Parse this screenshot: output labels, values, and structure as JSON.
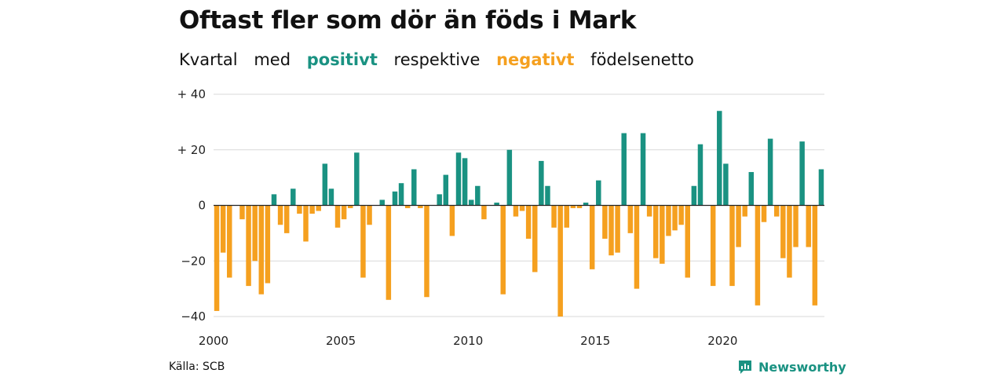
{
  "title": "Oftast fler som dör än föds i Mark",
  "subtitle": {
    "w1": "Kvartal",
    "w2": "med",
    "pos_word": "positivt",
    "w3": "respektive",
    "neg_word": "negativt",
    "w4": "födelsenetto"
  },
  "source": "Källa: SCB",
  "brand": {
    "name": "Newsworthy",
    "icon": "newsworthy-logo-icon"
  },
  "colors": {
    "positive": "#1a9282",
    "negative": "#f5a01f",
    "grid": "#d9d9d9",
    "zero_line": "#222222"
  },
  "chart_data": {
    "type": "bar",
    "title": "Oftast fler som dör än föds i Mark",
    "xlabel": "",
    "ylabel": "",
    "ylim": [
      -40,
      40
    ],
    "yticks": [
      {
        "value": 40,
        "label": "+ 40"
      },
      {
        "value": 20,
        "label": "+ 20"
      },
      {
        "value": 0,
        "label": "0"
      },
      {
        "value": -20,
        "label": "−20"
      },
      {
        "value": -40,
        "label": "−40"
      }
    ],
    "xticks": [
      {
        "year": 2000,
        "label": "2000"
      },
      {
        "year": 2005,
        "label": "2005"
      },
      {
        "year": 2010,
        "label": "2010"
      },
      {
        "year": 2015,
        "label": "2015"
      },
      {
        "year": 2020,
        "label": "2020"
      }
    ],
    "grid": true,
    "start": "2000 Q1",
    "x": [
      "2000 Q1",
      "2000 Q2",
      "2000 Q3",
      "2000 Q4",
      "2001 Q1",
      "2001 Q2",
      "2001 Q3",
      "2001 Q4",
      "2002 Q1",
      "2002 Q2",
      "2002 Q3",
      "2002 Q4",
      "2003 Q1",
      "2003 Q2",
      "2003 Q3",
      "2003 Q4",
      "2004 Q1",
      "2004 Q2",
      "2004 Q3",
      "2004 Q4",
      "2005 Q1",
      "2005 Q2",
      "2005 Q3",
      "2005 Q4",
      "2006 Q1",
      "2006 Q2",
      "2006 Q3",
      "2006 Q4",
      "2007 Q1",
      "2007 Q2",
      "2007 Q3",
      "2007 Q4",
      "2008 Q1",
      "2008 Q2",
      "2008 Q3",
      "2008 Q4",
      "2009 Q1",
      "2009 Q2",
      "2009 Q3",
      "2009 Q4",
      "2010 Q1",
      "2010 Q2",
      "2010 Q3",
      "2010 Q4",
      "2011 Q1",
      "2011 Q2",
      "2011 Q3",
      "2011 Q4",
      "2012 Q1",
      "2012 Q2",
      "2012 Q3",
      "2012 Q4",
      "2013 Q1",
      "2013 Q2",
      "2013 Q3",
      "2013 Q4",
      "2014 Q1",
      "2014 Q2",
      "2014 Q3",
      "2014 Q4",
      "2015 Q1",
      "2015 Q2",
      "2015 Q3",
      "2015 Q4",
      "2016 Q1",
      "2016 Q2",
      "2016 Q3",
      "2016 Q4",
      "2017 Q1",
      "2017 Q2",
      "2017 Q3",
      "2017 Q4",
      "2018 Q1",
      "2018 Q2",
      "2018 Q3",
      "2018 Q4",
      "2019 Q1",
      "2019 Q2",
      "2019 Q3",
      "2019 Q4",
      "2020 Q1",
      "2020 Q2",
      "2020 Q3",
      "2020 Q4",
      "2021 Q1",
      "2021 Q2",
      "2021 Q3",
      "2021 Q4",
      "2022 Q1",
      "2022 Q2",
      "2022 Q3",
      "2022 Q4",
      "2023 Q1",
      "2023 Q2",
      "2023 Q3",
      "2023 Q4"
    ],
    "values": [
      -38,
      -17,
      -26,
      0,
      -5,
      -29,
      -20,
      -32,
      -28,
      4,
      -7,
      -10,
      6,
      -3,
      -13,
      -3,
      -2,
      15,
      6,
      -8,
      -5,
      -1,
      19,
      -26,
      -7,
      0,
      2,
      -34,
      5,
      8,
      -1,
      13,
      -1,
      -33,
      0,
      4,
      11,
      -11,
      19,
      17,
      2,
      7,
      -5,
      0,
      1,
      -32,
      20,
      -4,
      -2,
      -12,
      -24,
      16,
      7,
      -8,
      -40,
      -8,
      -1,
      -1,
      1,
      -23,
      9,
      -12,
      -18,
      -17,
      26,
      -10,
      -30,
      26,
      -4,
      -19,
      -21,
      -11,
      -9,
      -7,
      -26,
      7,
      22,
      0,
      -29,
      34,
      15,
      -29,
      -15,
      -4,
      12,
      -36,
      -6,
      24,
      -4,
      -19,
      -26,
      -15,
      23,
      -15,
      -36,
      13
    ]
  }
}
